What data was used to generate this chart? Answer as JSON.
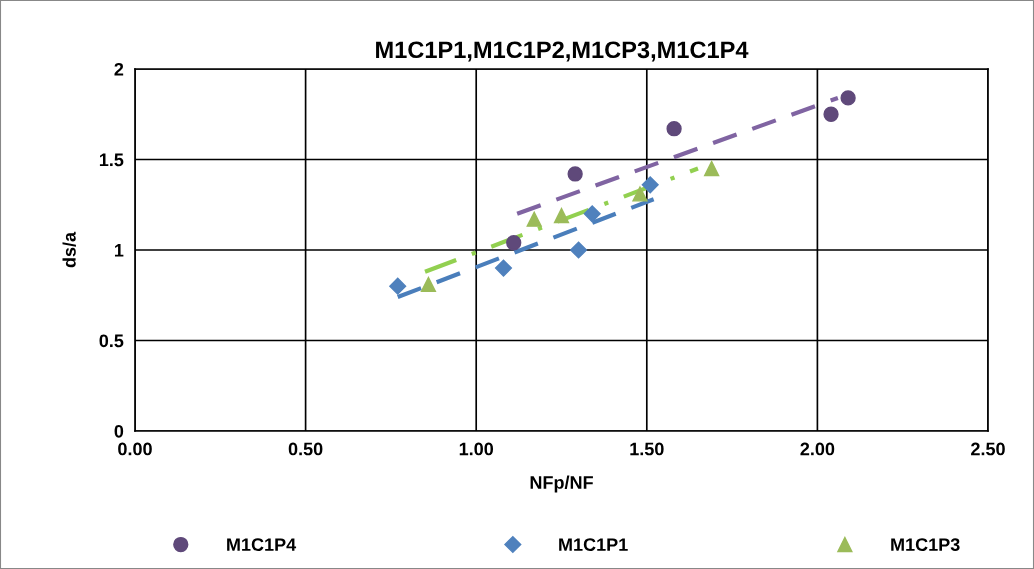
{
  "chart_data": {
    "type": "scatter",
    "title": "M1C1P1,M1C1P2,M1CP3,M1C1P4",
    "xlabel": "NFp/NF",
    "ylabel": "ds/a",
    "xlim": [
      0,
      2.5
    ],
    "xticks": [
      {
        "value": 0,
        "label": "0.00"
      },
      {
        "value": 0.5,
        "label": "0.50"
      },
      {
        "value": 1,
        "label": "1.00"
      },
      {
        "value": 1.5,
        "label": "1.50"
      },
      {
        "value": 2,
        "label": "2.00"
      },
      {
        "value": 2.5,
        "label": "2.50"
      }
    ],
    "ylim": [
      0,
      2
    ],
    "yticks": [
      0,
      0.5,
      1,
      1.5,
      2
    ],
    "grid": true,
    "legend": "bottom",
    "series": [
      {
        "name": "M1C1P4",
        "marker": "circle",
        "color": "#5f497a",
        "x": [
          1.11,
          1.29,
          1.58,
          2.04,
          2.09
        ],
        "values": [
          1.04,
          1.42,
          1.67,
          1.75,
          1.84
        ]
      },
      {
        "name": "M1C1P1",
        "marker": "diamond",
        "color": "#4f81bd",
        "x": [
          0.77,
          1.08,
          1.3,
          1.34,
          1.51
        ],
        "values": [
          0.8,
          0.9,
          1.0,
          1.2,
          1.36
        ]
      },
      {
        "name": "M1C1P3",
        "marker": "triangle",
        "color": "#9bbb59",
        "x": [
          0.86,
          1.17,
          1.25,
          1.48,
          1.69
        ],
        "values": [
          0.81,
          1.17,
          1.19,
          1.31,
          1.45
        ]
      },
      {
        "type": "line",
        "line_style": "dashed",
        "color": "#8064a2",
        "x": [
          1.12,
          2.06
        ],
        "values": [
          1.2,
          1.84
        ]
      },
      {
        "type": "line",
        "line_style": "dashed",
        "color": "#4a7ebb",
        "x": [
          0.77,
          1.52
        ],
        "values": [
          0.74,
          1.28
        ]
      },
      {
        "type": "line",
        "line_style": "dashdot",
        "color": "#92d050",
        "x": [
          0.85,
          1.65
        ],
        "values": [
          0.88,
          1.45
        ]
      }
    ]
  }
}
